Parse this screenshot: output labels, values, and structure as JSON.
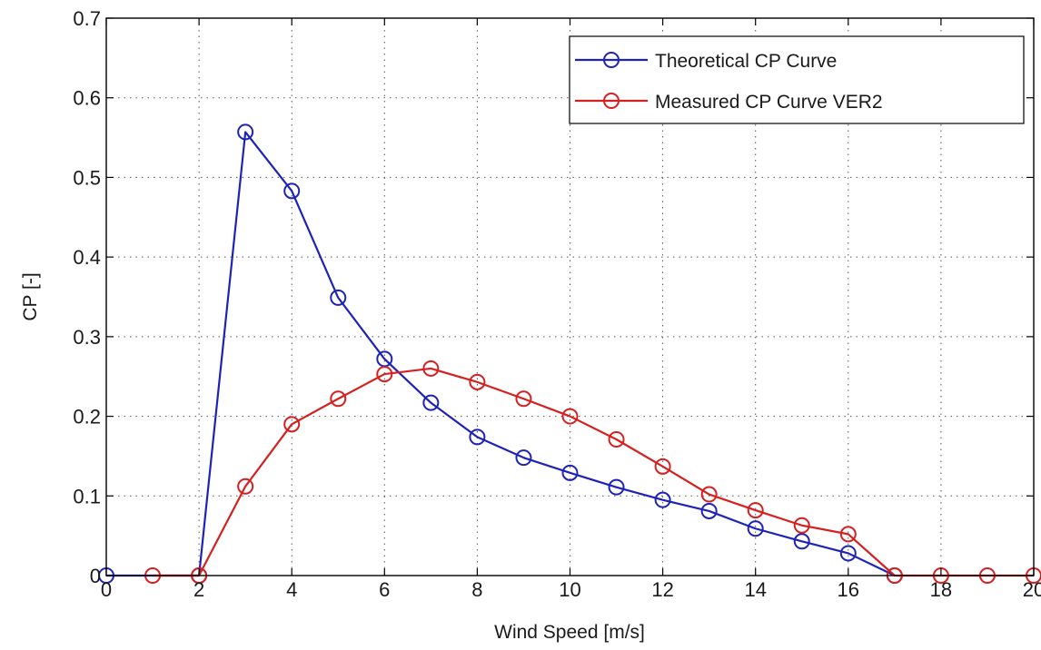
{
  "chart_data": {
    "type": "line",
    "title": "",
    "xlabel": "Wind Speed [m/s]",
    "ylabel": "CP [-]",
    "xlim": [
      0,
      20
    ],
    "ylim": [
      0,
      0.7
    ],
    "xticks": [
      0,
      2,
      4,
      6,
      8,
      10,
      12,
      14,
      16,
      18,
      20
    ],
    "yticks": [
      0,
      0.1,
      0.2,
      0.3,
      0.4,
      0.5,
      0.6,
      0.7
    ],
    "xtick_labels": [
      "0",
      "2",
      "4",
      "6",
      "8",
      "10",
      "12",
      "14",
      "16",
      "18",
      "20"
    ],
    "ytick_labels": [
      "0",
      "0.1",
      "0.2",
      "0.3",
      "0.4",
      "0.5",
      "0.6",
      "0.7"
    ],
    "grid": true,
    "legend_position": "top-right",
    "series": [
      {
        "name": "Theoretical CP Curve",
        "color": "#1f22b8",
        "marker": "circle",
        "x": [
          0,
          2,
          3,
          4,
          5,
          6,
          7,
          8,
          9,
          10,
          11,
          12,
          13,
          14,
          15,
          16,
          17
        ],
        "y": [
          0,
          0,
          0.557,
          0.483,
          0.349,
          0.272,
          0.217,
          0.174,
          0.148,
          0.129,
          0.111,
          0.095,
          0.081,
          0.059,
          0.043,
          0.028,
          0
        ]
      },
      {
        "name": "Measured CP Curve VER2",
        "color": "#d62020",
        "marker": "circle",
        "x": [
          1,
          2,
          3,
          4,
          5,
          6,
          7,
          8,
          9,
          10,
          11,
          12,
          13,
          14,
          15,
          16,
          17,
          18,
          19,
          20
        ],
        "y": [
          0,
          0,
          0.112,
          0.19,
          0.222,
          0.253,
          0.26,
          0.243,
          0.222,
          0.2,
          0.171,
          0.137,
          0.102,
          0.082,
          0.063,
          0.052,
          0,
          0,
          0,
          0
        ]
      }
    ]
  }
}
